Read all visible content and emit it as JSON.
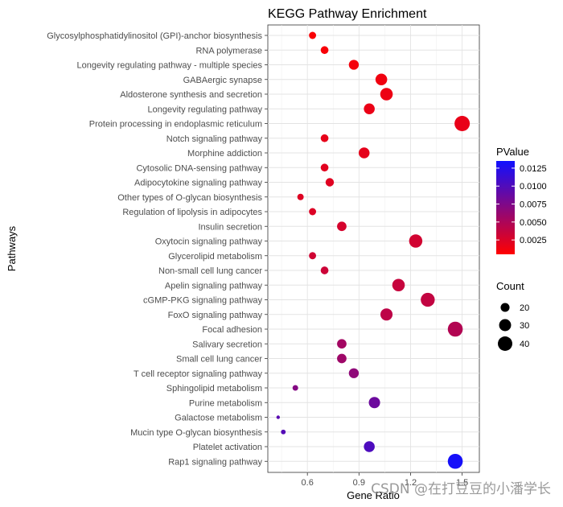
{
  "chart_data": {
    "type": "scatter",
    "title": "KEGG Pathway Enrichment",
    "xlabel": "Gene Ratio",
    "ylabel": "Pathways",
    "xlim": [
      0.37,
      1.6
    ],
    "xticks": [
      0.6,
      0.9,
      1.2,
      1.5
    ],
    "xtick_labels": [
      "0.6",
      "0.9",
      "1.2",
      "1.5"
    ],
    "grid": true,
    "points": [
      {
        "pathway": "Glycosylphosphatidylinositol (GPI)-anchor biosynthesis",
        "ratio": 0.63,
        "count": 13,
        "pvalue": 0.0008
      },
      {
        "pathway": "RNA polymerase",
        "ratio": 0.7,
        "count": 14,
        "pvalue": 0.0009
      },
      {
        "pathway": "Longevity regulating pathway - multiple species",
        "ratio": 0.87,
        "count": 18,
        "pvalue": 0.0011
      },
      {
        "pathway": "GABAergic synapse",
        "ratio": 1.03,
        "count": 22,
        "pvalue": 0.0013
      },
      {
        "pathway": "Aldosterone synthesis and secretion",
        "ratio": 1.06,
        "count": 24,
        "pvalue": 0.0015
      },
      {
        "pathway": "Longevity regulating pathway",
        "ratio": 0.96,
        "count": 20,
        "pvalue": 0.0016
      },
      {
        "pathway": "Protein processing in endoplasmic reticulum",
        "ratio": 1.5,
        "count": 32,
        "pvalue": 0.0017
      },
      {
        "pathway": "Notch signaling pathway",
        "ratio": 0.7,
        "count": 14,
        "pvalue": 0.0018
      },
      {
        "pathway": "Morphine addiction",
        "ratio": 0.93,
        "count": 20,
        "pvalue": 0.0019
      },
      {
        "pathway": "Cytosolic DNA-sensing pathway",
        "ratio": 0.7,
        "count": 14,
        "pvalue": 0.0021
      },
      {
        "pathway": "Adipocytokine signaling pathway",
        "ratio": 0.73,
        "count": 15,
        "pvalue": 0.0022
      },
      {
        "pathway": "Other types of O-glycan biosynthesis",
        "ratio": 0.56,
        "count": 12,
        "pvalue": 0.0023
      },
      {
        "pathway": "Regulation of lipolysis in adipocytes",
        "ratio": 0.63,
        "count": 13,
        "pvalue": 0.0024
      },
      {
        "pathway": "Insulin secretion",
        "ratio": 0.8,
        "count": 17,
        "pvalue": 0.0028
      },
      {
        "pathway": "Oxytocin signaling pathway",
        "ratio": 1.23,
        "count": 26,
        "pvalue": 0.003
      },
      {
        "pathway": "Glycerolipid metabolism",
        "ratio": 0.63,
        "count": 13,
        "pvalue": 0.0031
      },
      {
        "pathway": "Non-small cell lung cancer",
        "ratio": 0.7,
        "count": 14,
        "pvalue": 0.0033
      },
      {
        "pathway": "Apelin signaling pathway",
        "ratio": 1.13,
        "count": 24,
        "pvalue": 0.0036
      },
      {
        "pathway": "cGMP-PKG signaling pathway",
        "ratio": 1.3,
        "count": 28,
        "pvalue": 0.0038
      },
      {
        "pathway": "FoxO signaling pathway",
        "ratio": 1.06,
        "count": 23,
        "pvalue": 0.0041
      },
      {
        "pathway": "Focal adhesion",
        "ratio": 1.46,
        "count": 31,
        "pvalue": 0.0047
      },
      {
        "pathway": "Salivary secretion",
        "ratio": 0.8,
        "count": 17,
        "pvalue": 0.0055
      },
      {
        "pathway": "Small cell lung cancer",
        "ratio": 0.8,
        "count": 17,
        "pvalue": 0.0058
      },
      {
        "pathway": "T cell receptor signaling pathway",
        "ratio": 0.87,
        "count": 18,
        "pvalue": 0.0066
      },
      {
        "pathway": "Sphingolipid metabolism",
        "ratio": 0.53,
        "count": 11,
        "pvalue": 0.0072
      },
      {
        "pathway": "Purine metabolism",
        "ratio": 0.99,
        "count": 21,
        "pvalue": 0.0085
      },
      {
        "pathway": "Galactose metabolism",
        "ratio": 0.43,
        "count": 9,
        "pvalue": 0.0095
      },
      {
        "pathway": "Mucin type O-glycan biosynthesis",
        "ratio": 0.46,
        "count": 10,
        "pvalue": 0.0098
      },
      {
        "pathway": "Platelet activation",
        "ratio": 0.96,
        "count": 20,
        "pvalue": 0.0102
      },
      {
        "pathway": "Rap1 signaling pathway",
        "ratio": 1.46,
        "count": 31,
        "pvalue": 0.0132
      }
    ],
    "color_legend": {
      "title": "PValue",
      "range": [
        0.0005,
        0.0135
      ],
      "low_color": "#ff0000",
      "high_color": "#1010ff",
      "ticks": [
        0.0025,
        0.005,
        0.0075,
        0.01,
        0.0125
      ],
      "tick_labels": [
        "0.0025",
        "0.0050",
        "0.0075",
        "0.0100",
        "0.0125"
      ]
    },
    "size_legend": {
      "title": "Count",
      "values": [
        20,
        30,
        40
      ],
      "labels": [
        "20",
        "30",
        "40"
      ],
      "count_range": [
        9,
        32
      ]
    }
  },
  "watermark": "CSDN @在打豆豆的小潘学长"
}
